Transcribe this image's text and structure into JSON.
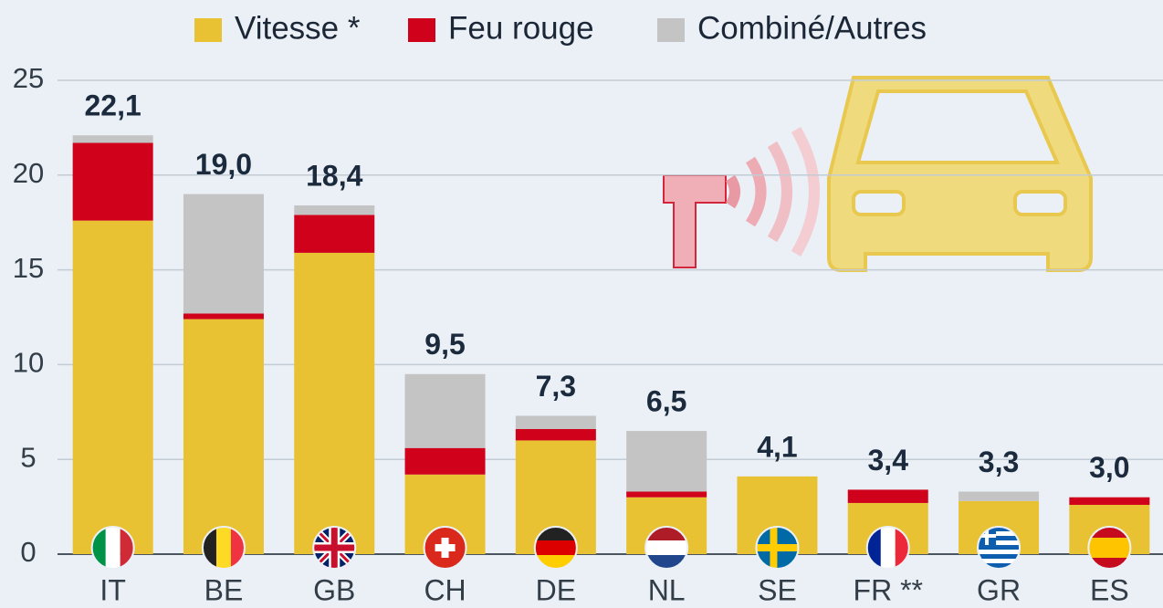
{
  "chart_data": {
    "type": "stacked_bar",
    "categories": [
      "IT",
      "BE",
      "GB",
      "CH",
      "DE",
      "NL",
      "SE",
      "FR **",
      "GR",
      "ES"
    ],
    "series": [
      {
        "name": "Vitesse *",
        "color": "#e8c232",
        "values": [
          17.6,
          12.4,
          15.9,
          4.2,
          6.0,
          3.0,
          4.1,
          2.7,
          2.8,
          2.6
        ]
      },
      {
        "name": "Feu rouge",
        "color": "#d0021b",
        "values": [
          4.1,
          0.3,
          2.0,
          1.4,
          0.6,
          0.3,
          0,
          0.7,
          0,
          0.4
        ]
      },
      {
        "name": "Combiné/Autres",
        "color": "#c4c4c4",
        "values": [
          0.4,
          6.3,
          0.5,
          3.9,
          0.7,
          3.2,
          0,
          0,
          0.5,
          0
        ]
      }
    ],
    "totals": [
      22.1,
      19.0,
      18.4,
      9.5,
      7.3,
      6.5,
      4.1,
      3.4,
      3.3,
      3.0
    ],
    "total_labels": [
      "22,1",
      "19,0",
      "18,4",
      "9,5",
      "7,3",
      "6,5",
      "4,1",
      "3,4",
      "3,3",
      "3,0"
    ],
    "ylim": [
      0,
      25
    ],
    "yticks": [
      0,
      5,
      10,
      15,
      20,
      25
    ],
    "grid": true
  }
}
